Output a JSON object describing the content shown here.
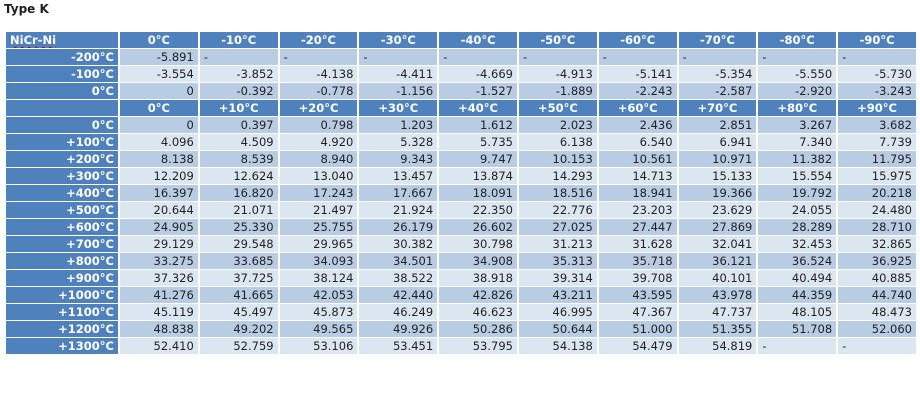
{
  "title": "Type K",
  "corner_label": "NiCr-Ni",
  "neg_headers": [
    "0°C",
    "-10°C",
    "-20°C",
    "-30°C",
    "-40°C",
    "-50°C",
    "-60°C",
    "-70°C",
    "-80°C",
    "-90°C"
  ],
  "neg_rows": [
    {
      "label": "-200°C",
      "values": [
        "-5.891",
        "-",
        "-",
        "-",
        "-",
        "-",
        "-",
        "-",
        "-",
        "-"
      ]
    },
    {
      "label": "-100°C",
      "values": [
        "-3.554",
        "-3.852",
        "-4.138",
        "-4.411",
        "-4.669",
        "-4.913",
        "-5.141",
        "-5.354",
        "-5.550",
        "-5.730"
      ]
    },
    {
      "label": "0°C",
      "values": [
        "0",
        "-0.392",
        "-0.778",
        "-1.156",
        "-1.527",
        "-1.889",
        "-2.243",
        "-2.587",
        "-2.920",
        "-3.243"
      ]
    }
  ],
  "pos_headers": [
    "0°C",
    "+10°C",
    "+20°C",
    "+30°C",
    "+40°C",
    "+50°C",
    "+60°C",
    "+70°C",
    "+80°C",
    "+90°C"
  ],
  "pos_rows": [
    {
      "label": "0°C",
      "values": [
        "0",
        "0.397",
        "0.798",
        "1.203",
        "1.612",
        "2.023",
        "2.436",
        "2.851",
        "3.267",
        "3.682"
      ]
    },
    {
      "label": "+100°C",
      "values": [
        "4.096",
        "4.509",
        "4.920",
        "5.328",
        "5.735",
        "6.138",
        "6.540",
        "6.941",
        "7.340",
        "7.739"
      ]
    },
    {
      "label": "+200°C",
      "values": [
        "8.138",
        "8.539",
        "8.940",
        "9.343",
        "9.747",
        "10.153",
        "10.561",
        "10.971",
        "11.382",
        "11.795"
      ]
    },
    {
      "label": "+300°C",
      "values": [
        "12.209",
        "12.624",
        "13.040",
        "13.457",
        "13.874",
        "14.293",
        "14.713",
        "15.133",
        "15.554",
        "15.975"
      ]
    },
    {
      "label": "+400°C",
      "values": [
        "16.397",
        "16.820",
        "17.243",
        "17.667",
        "18.091",
        "18.516",
        "18.941",
        "19.366",
        "19.792",
        "20.218"
      ]
    },
    {
      "label": "+500°C",
      "values": [
        "20.644",
        "21.071",
        "21.497",
        "21.924",
        "22.350",
        "22.776",
        "23.203",
        "23.629",
        "24.055",
        "24.480"
      ]
    },
    {
      "label": "+600°C",
      "values": [
        "24.905",
        "25.330",
        "25.755",
        "26.179",
        "26.602",
        "27.025",
        "27.447",
        "27.869",
        "28.289",
        "28.710"
      ]
    },
    {
      "label": "+700°C",
      "values": [
        "29.129",
        "29.548",
        "29.965",
        "30.382",
        "30.798",
        "31.213",
        "31.628",
        "32.041",
        "32.453",
        "32.865"
      ]
    },
    {
      "label": "+800°C",
      "values": [
        "33.275",
        "33.685",
        "34.093",
        "34.501",
        "34.908",
        "35.313",
        "35.718",
        "36.121",
        "36.524",
        "36.925"
      ]
    },
    {
      "label": "+900°C",
      "values": [
        "37.326",
        "37.725",
        "38.124",
        "38.522",
        "38.918",
        "39.314",
        "39.708",
        "40.101",
        "40.494",
        "40.885"
      ]
    },
    {
      "label": "+1000°C",
      "values": [
        "41.276",
        "41.665",
        "42.053",
        "42.440",
        "42.826",
        "43.211",
        "43.595",
        "43.978",
        "44.359",
        "44.740"
      ]
    },
    {
      "label": "+1100°C",
      "values": [
        "45.119",
        "45.497",
        "45.873",
        "46.249",
        "46.623",
        "46.995",
        "47.367",
        "47.737",
        "48.105",
        "48.473"
      ]
    },
    {
      "label": "+1200°C",
      "values": [
        "48.838",
        "49.202",
        "49.565",
        "49.926",
        "50.286",
        "50.644",
        "51.000",
        "51.355",
        "51.708",
        "52.060"
      ]
    },
    {
      "label": "+1300°C",
      "values": [
        "52.410",
        "52.759",
        "53.106",
        "53.451",
        "53.795",
        "54.138",
        "54.479",
        "54.819",
        "-",
        "-"
      ]
    }
  ]
}
